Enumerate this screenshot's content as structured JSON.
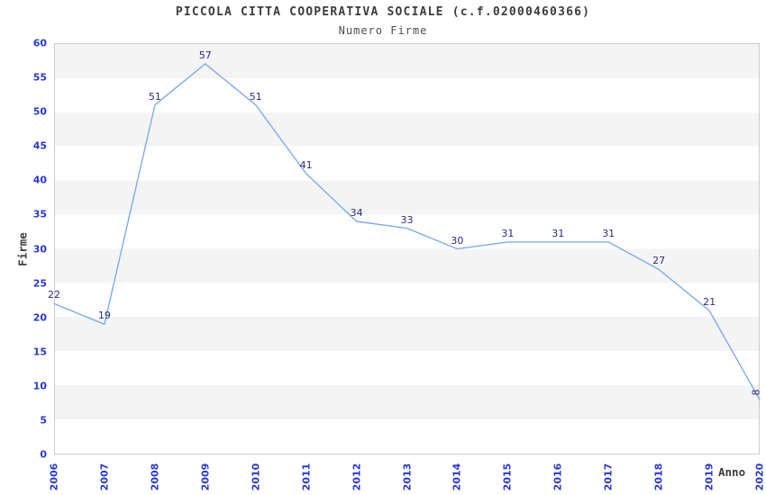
{
  "header": {
    "title": "PICCOLA CITTA COOPERATIVA SOCIALE (c.f.02000460366)",
    "subtitle": "Numero Firme"
  },
  "chart_data": {
    "type": "line",
    "title": "PICCOLA CITTA COOPERATIVA SOCIALE (c.f.02000460366)",
    "subtitle": "Numero Firme",
    "xlabel": "Anno",
    "ylabel": "Firme",
    "categories": [
      "2006",
      "2007",
      "2008",
      "2009",
      "2010",
      "2011",
      "2012",
      "2013",
      "2014",
      "2015",
      "2016",
      "2017",
      "2018",
      "2019",
      "2020"
    ],
    "series": [
      {
        "name": "Numero Firme",
        "values": [
          22,
          19,
          51,
          57,
          51,
          41,
          34,
          33,
          30,
          31,
          31,
          31,
          27,
          21,
          8
        ]
      }
    ],
    "ylim": [
      0,
      60
    ],
    "ytick_step": 5,
    "ytick_labels": [
      "0",
      "5",
      "10",
      "15",
      "20",
      "25",
      "30",
      "35",
      "40",
      "45",
      "50",
      "55",
      "60"
    ],
    "data_labels_visible": true,
    "legend": "none",
    "grid": "horizontal-alternating-bands",
    "band_colors": [
      "#f4f4f4",
      "#ffffff"
    ],
    "line_color": "#7cade8",
    "tick_label_color": "#2838d4",
    "data_label_color": "#2b2b7e",
    "plot_border_color": "#cccccc",
    "title_color": "#3c3c3c"
  }
}
